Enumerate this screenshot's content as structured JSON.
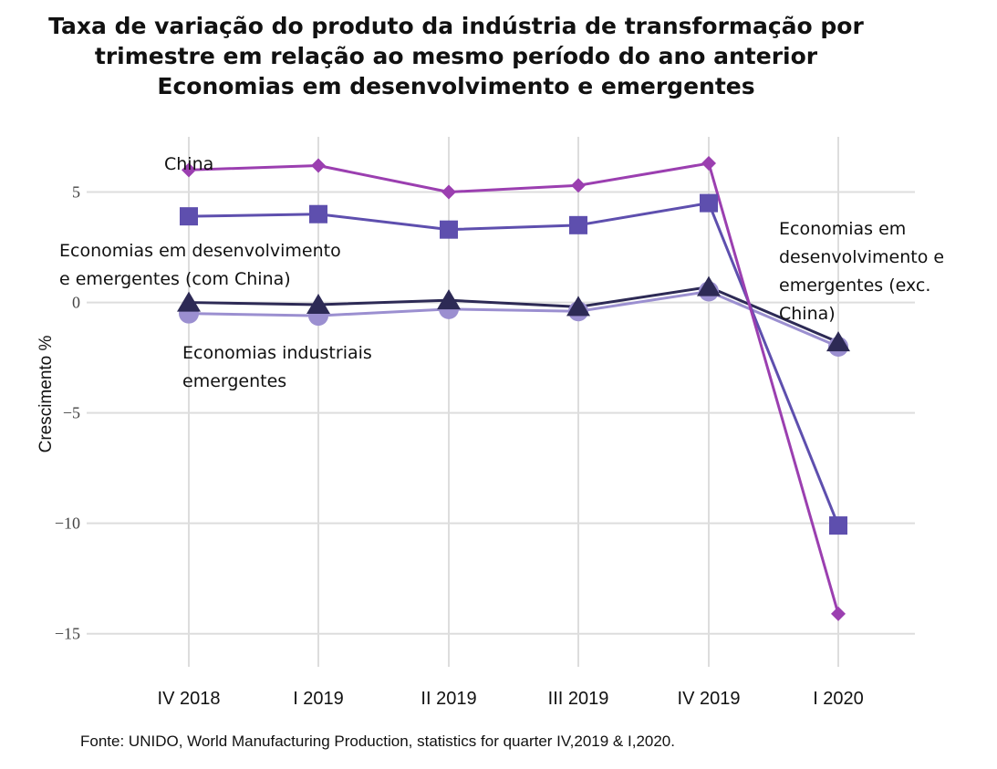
{
  "chart_data": {
    "type": "line",
    "title_lines": [
      "Taxa de variação do produto da indústria de transformação por",
      "trimestre em relação ao mesmo período do ano anterior",
      "Economias em desenvolvimento e emergentes"
    ],
    "xlabel": "",
    "ylabel": "Crescimento %",
    "categories": [
      "IV 2018",
      "I 2019",
      "II 2019",
      "III 2019",
      "IV 2019",
      "I 2020"
    ],
    "ylim": [
      -16.5,
      7.5
    ],
    "yticks": [
      5,
      0,
      -5,
      -10,
      -15
    ],
    "ytick_labels": [
      "5",
      "0",
      "−5",
      "−10",
      "−15"
    ],
    "grid": true,
    "series": [
      {
        "name": "China",
        "label_lines": [
          "China"
        ],
        "marker": "diamond",
        "color": "#9b3fb0",
        "values": [
          6.0,
          6.2,
          5.0,
          5.3,
          6.3,
          -14.1
        ]
      },
      {
        "name": "Economias em desenvolvimento e emergentes (com China)",
        "label_lines": [
          "Economias em desenvolvimento",
          "e emergentes (com China)"
        ],
        "marker": "square",
        "color": "#5e4fae",
        "values": [
          3.9,
          4.0,
          3.3,
          3.5,
          4.5,
          -10.1
        ]
      },
      {
        "name": "Economias em desenvolvimento e emergentes (exc. China)",
        "label_lines": [
          "Economias em",
          "desenvolvimento e",
          "emergentes (exc.",
          "China)"
        ],
        "marker": "triangle",
        "color": "#2d2a55",
        "values": [
          0.0,
          -0.1,
          0.1,
          -0.2,
          0.7,
          -1.8
        ]
      },
      {
        "name": "Economias industriais emergentes",
        "label_lines": [
          "Economias industriais",
          "emergentes"
        ],
        "marker": "circle",
        "color": "#9b8fd0",
        "values": [
          -0.5,
          -0.6,
          -0.3,
          -0.4,
          0.5,
          -2.0
        ]
      }
    ],
    "source": "Fonte: UNIDO, World Manufacturing Production, statistics for quarter IV,2019 & I,2020."
  }
}
